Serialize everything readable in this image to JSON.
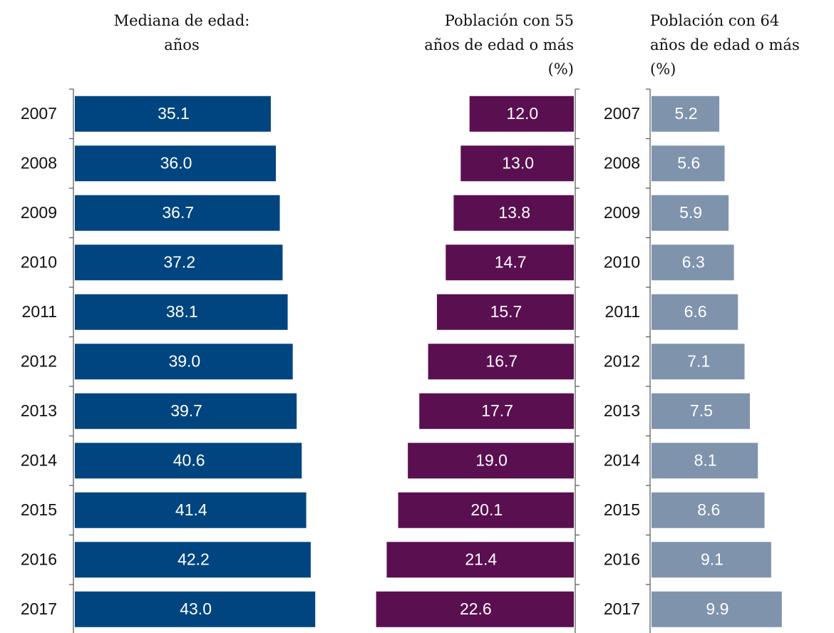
{
  "chart_data": [
    {
      "type": "bar",
      "orientation": "horizontal",
      "title": [
        "Mediana de edad:",
        "años"
      ],
      "categories": [
        "2007",
        "2008",
        "2009",
        "2010",
        "2011",
        "2012",
        "2013",
        "2014",
        "2015",
        "2016",
        "2017"
      ],
      "values": [
        35.1,
        36.0,
        36.7,
        37.2,
        38.1,
        39.0,
        39.7,
        40.6,
        41.4,
        42.2,
        43.0
      ],
      "value_labels": [
        "35.1",
        "36.0",
        "36.7",
        "37.2",
        "38.1",
        "39.0",
        "39.7",
        "40.6",
        "41.4",
        "42.2",
        "43.0"
      ],
      "color": "#00457f",
      "xlim": [
        0,
        45
      ]
    },
    {
      "type": "bar",
      "orientation": "horizontal",
      "reversed": true,
      "title": [
        "Población con 55",
        "años de edad o más",
        "(%)"
      ],
      "values": [
        12.0,
        13.0,
        13.8,
        14.7,
        15.7,
        16.7,
        17.7,
        19.0,
        20.1,
        21.4,
        22.6
      ],
      "value_labels": [
        "12.0",
        "13.0",
        "13.8",
        "14.7",
        "15.7",
        "16.7",
        "17.7",
        "19.0",
        "20.1",
        "21.4",
        "22.6"
      ],
      "color": "#5a0f50",
      "xlim": [
        0,
        25
      ]
    },
    {
      "type": "bar",
      "orientation": "horizontal",
      "title": [
        "Población con 64",
        "años de edad o más",
        "(%)"
      ],
      "categories": [
        "2007",
        "2008",
        "2009",
        "2010",
        "2011",
        "2012",
        "2013",
        "2014",
        "2015",
        "2016",
        "2017"
      ],
      "values": [
        5.2,
        5.6,
        5.9,
        6.3,
        6.6,
        7.1,
        7.5,
        8.1,
        8.6,
        9.1,
        9.9
      ],
      "value_labels": [
        "5.2",
        "5.6",
        "5.9",
        "6.3",
        "6.6",
        "7.1",
        "7.5",
        "8.1",
        "8.6",
        "9.1",
        "9.9"
      ],
      "color": "#7f93ad",
      "xlim": [
        0,
        13.5
      ]
    }
  ]
}
